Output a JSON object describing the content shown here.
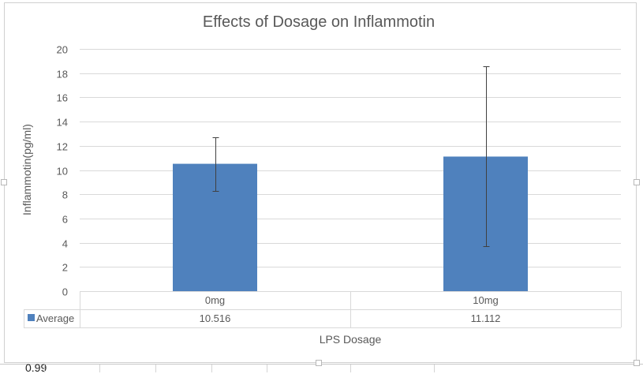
{
  "chart_data": {
    "type": "bar",
    "title": "Effects of Dosage on Inflammotin",
    "xlabel": "LPS Dosage",
    "ylabel": "Inflammotin(pg/ml)",
    "categories": [
      "0mg",
      "10mg"
    ],
    "series": [
      {
        "name": "Average",
        "color": "#4f81bd",
        "values": [
          10.516,
          11.112
        ],
        "error": [
          2.22,
          7.43
        ]
      }
    ],
    "ylim": [
      0,
      20
    ],
    "yticks": [
      0,
      2,
      4,
      6,
      8,
      10,
      12,
      14,
      16,
      18,
      20
    ],
    "grid": true,
    "legend": "data-table",
    "data_table": {
      "row_label": "Average",
      "values": [
        "10.516",
        "11.112"
      ]
    }
  },
  "sheet": {
    "partial_cell_text": "0.99"
  }
}
